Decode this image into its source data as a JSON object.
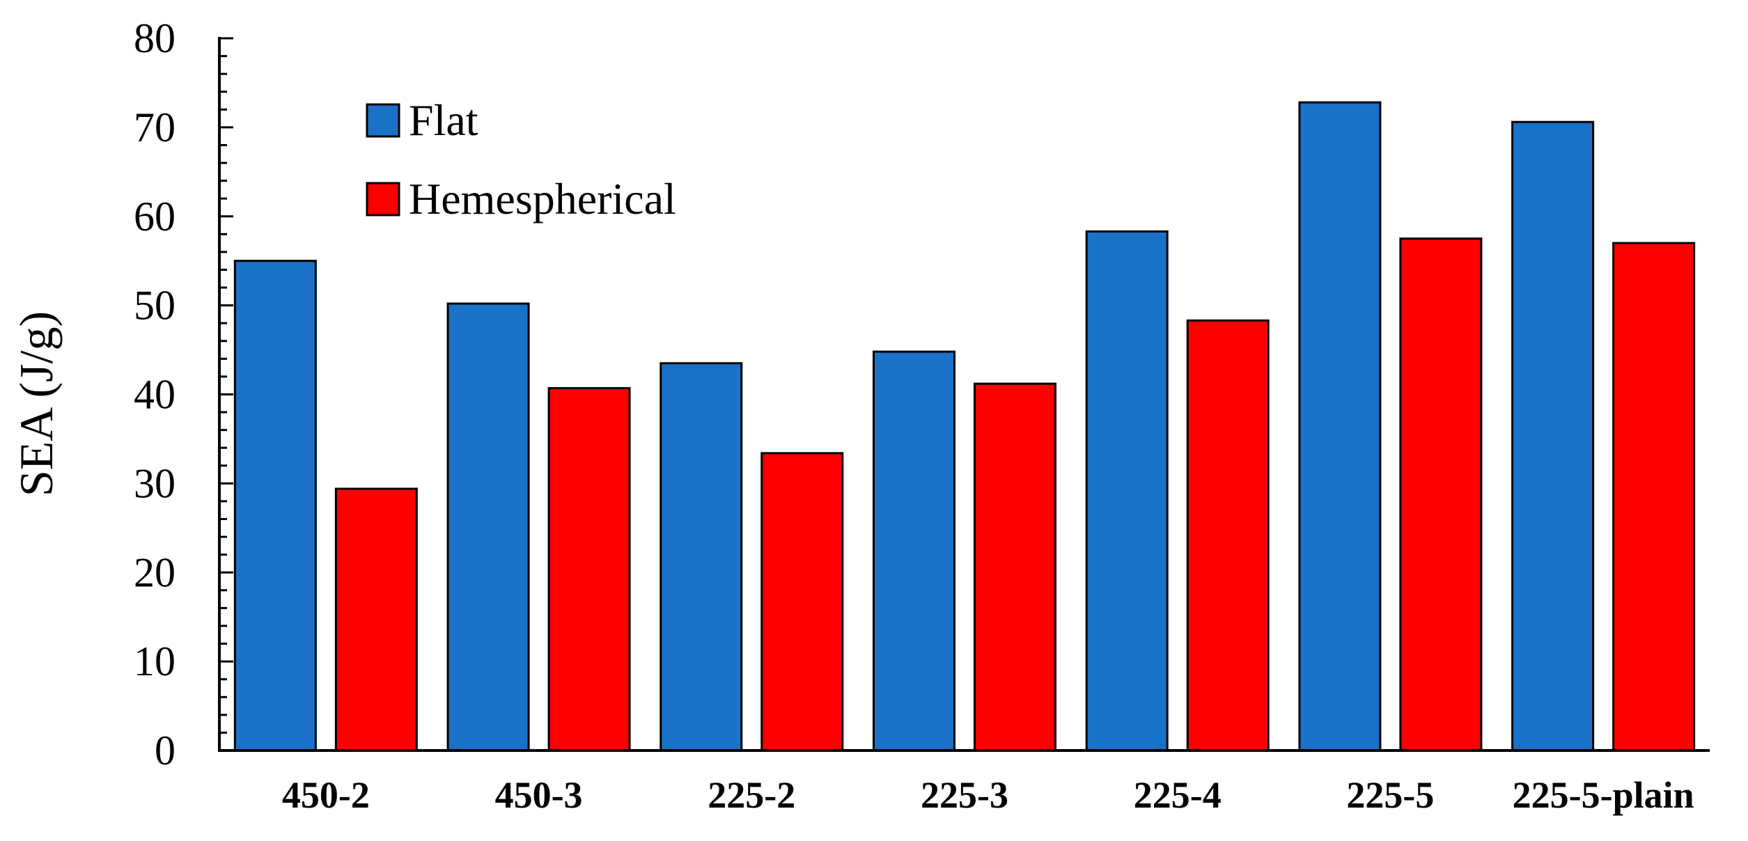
{
  "chart_data": {
    "type": "bar",
    "ylabel": "SEA (J/g)",
    "ylim": [
      0,
      80
    ],
    "yticks": [
      0,
      10,
      20,
      30,
      40,
      50,
      60,
      70,
      80
    ],
    "yticks_labels": [
      "0",
      "10",
      "20",
      "30",
      "40",
      "50",
      "60",
      "70",
      "80"
    ],
    "grid": false,
    "legend_position": "top-left",
    "categories": [
      "450-2",
      "450-3",
      "225-2",
      "225-3",
      "225-4",
      "225-5",
      "225-5-plain"
    ],
    "series": [
      {
        "name": "Flat",
        "color": "#1a72c8",
        "values": [
          55.0,
          50.2,
          43.5,
          44.8,
          58.3,
          72.8,
          70.6
        ]
      },
      {
        "name": "Hemespherical",
        "color": "#ff0000",
        "values": [
          29.4,
          40.7,
          33.4,
          41.2,
          48.3,
          57.5,
          57.0
        ]
      }
    ]
  }
}
